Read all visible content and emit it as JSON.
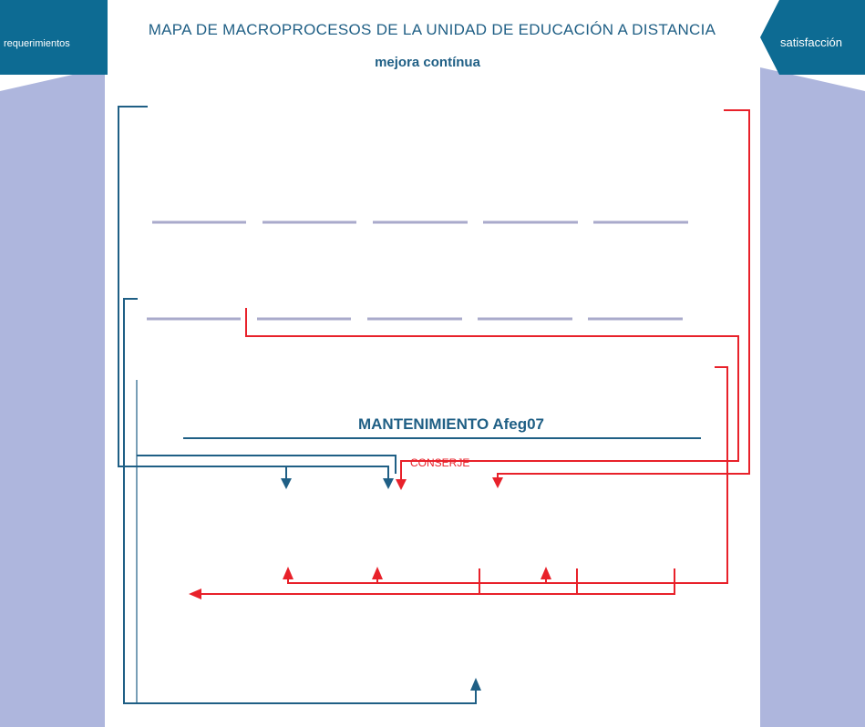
{
  "header": {
    "title": "MAPA DE MACROPROCESOS DE LA UNIDAD DE EDUCACIÓN A DISTANCIA",
    "subtitle": "mejora contínua"
  },
  "flags": {
    "left_label": "requerimientos",
    "right_label": "satisfacción"
  },
  "process": {
    "name": "MANTENIMIENTO Afeg07",
    "role": "CONSERJE"
  },
  "colors": {
    "blue": "#1f5f85",
    "teal_flag": "#0d6b93",
    "red": "#e8212a",
    "side_panel": "#aeb6dd",
    "placeholder_line": "#a9aacb"
  }
}
